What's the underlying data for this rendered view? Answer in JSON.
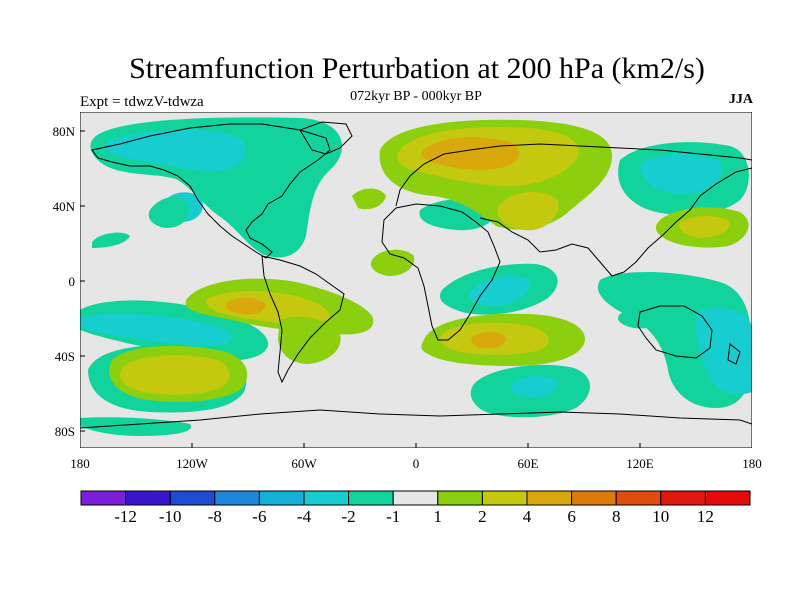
{
  "title": "Streamfunction Perturbation at 200 hPa (km2/s)",
  "subtitle": "072kyr BP - 000kyr BP",
  "left_label": "Expt = tdwzV-tdwza",
  "right_label": "JJA",
  "lat_ticks": [
    "80N",
    "40N",
    "0",
    "40S",
    "80S"
  ],
  "lon_ticks": [
    "180",
    "120W",
    "60W",
    "0",
    "60E",
    "120E",
    "180"
  ],
  "colorbar": {
    "labels": [
      "-12",
      "-10",
      "-8",
      "-6",
      "-4",
      "-2",
      "-1",
      "1",
      "2",
      "4",
      "6",
      "8",
      "10",
      "12"
    ],
    "colors": [
      "#7a1fd8",
      "#3a16cf",
      "#1d4bd1",
      "#1e87db",
      "#15b0d8",
      "#17cdd0",
      "#13d39c",
      "#e6e6e6",
      "#8ccf0e",
      "#c4c80f",
      "#d8a80c",
      "#dc7a0c",
      "#df4c0d",
      "#e0160f",
      "#e60a0a"
    ]
  },
  "fill_colors": {
    "ocean_background": "#e6e6e6",
    "neg_1_2": "#13d39c",
    "neg_2_4": "#17cdd0",
    "neg_4_6": "#15b0d8",
    "pos_1_2": "#8ccf0e",
    "pos_2_4": "#c4c80f",
    "pos_4_6": "#d8a80c",
    "pos_6_8": "#dc7a0c"
  }
}
